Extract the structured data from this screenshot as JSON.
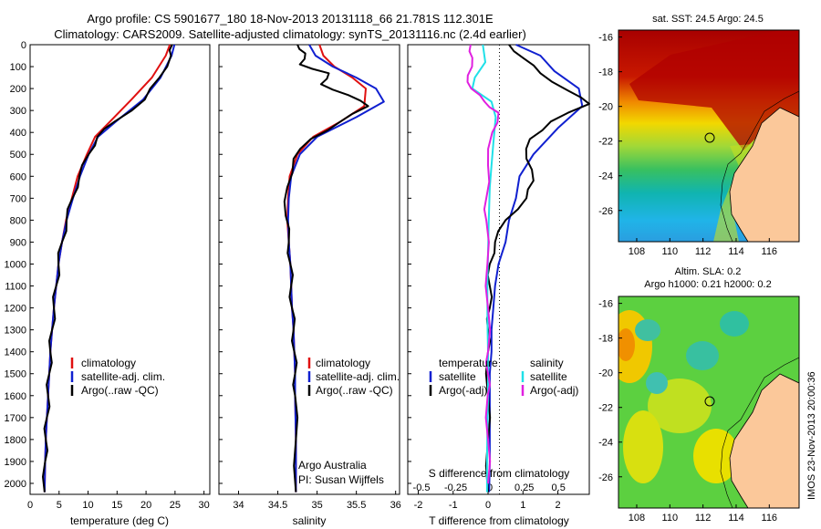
{
  "header": {
    "line1": "Argo profile: CS 5901677_180 18-Nov-2013 20131118_66 21.781S 112.301E",
    "line2": "Climatology: CARS2009. Satellite-adjusted climatology: synTS_20131116.nc (2.4d earlier)"
  },
  "colors": {
    "climatology": "#e01010",
    "satellite": "#1020d0",
    "argo": "#000000",
    "argo_adj_s": "#e020e0",
    "sat_s": "#20e0e8",
    "land": "#fbc89a"
  },
  "depth_axis": {
    "ylim": [
      0,
      2050
    ],
    "ticks": [
      0,
      100,
      200,
      300,
      400,
      500,
      600,
      700,
      800,
      900,
      1000,
      1100,
      1200,
      1300,
      1400,
      1500,
      1600,
      1700,
      1800,
      1900,
      2000
    ]
  },
  "legends": {
    "temperature": [
      "climatology",
      "satellite-adj. clim.",
      "Argo(..raw -QC)"
    ],
    "salinity": [
      "climatology",
      "satellite-adj. clim.",
      "Argo(..raw -QC)"
    ],
    "diff_t_title": "temperature",
    "diff_s_title": "salinity",
    "diff_t": [
      "satellite",
      "Argo(-adj)"
    ],
    "diff_s": [
      "satellite",
      "Argo(-adj)"
    ]
  },
  "credit": {
    "line1": "Argo Australia",
    "line2": "PI: Susan Wijffels"
  },
  "map_sst": {
    "title": "sat. SST: 24.5 Argo: 24.5",
    "lon_ticks": [
      108,
      110,
      112,
      114,
      116
    ],
    "lat_ticks": [
      -16,
      -18,
      -20,
      -22,
      -24,
      -26
    ]
  },
  "map_sla": {
    "title1": "Altim. SLA: 0.2",
    "title2": "Argo h1000: 0.21 h2000: 0.2",
    "lon_ticks": [
      108,
      110,
      112,
      114,
      116
    ],
    "lat_ticks": [
      -16,
      -18,
      -20,
      -22,
      -24,
      -26
    ]
  },
  "side_text": "IMOS 23-Nov-2013 20:00:36",
  "chart_data": [
    {
      "type": "line",
      "xlabel": "temperature (deg C)",
      "xlim": [
        0,
        31
      ],
      "xticks": [
        0,
        5,
        10,
        15,
        20,
        25,
        30
      ],
      "ylim": [
        0,
        2050
      ],
      "series": [
        {
          "name": "climatology",
          "x": [
            24.1,
            23.4,
            21,
            17.5,
            13.8,
            11.2,
            9.8,
            8.2,
            7.2,
            6.2,
            5.5,
            4.9,
            4.5,
            4.1,
            3.8,
            3.5,
            3.3,
            3.1,
            2.9,
            2.7,
            2.6,
            2.5
          ],
          "y": [
            0,
            50,
            150,
            250,
            350,
            420,
            500,
            600,
            700,
            800,
            900,
            1000,
            1100,
            1200,
            1300,
            1400,
            1500,
            1600,
            1700,
            1800,
            1900,
            2040
          ]
        },
        {
          "name": "satellite-adj. clim.",
          "x": [
            24.9,
            24.4,
            22.5,
            19.5,
            14.8,
            11.7,
            10.1,
            8.6,
            7.4,
            6.3,
            5.5,
            4.9,
            4.5,
            4.1,
            3.8,
            3.5,
            3.3,
            3.1,
            2.9,
            2.7,
            2.6,
            2.5
          ],
          "y": [
            0,
            50,
            150,
            250,
            350,
            420,
            500,
            600,
            700,
            800,
            900,
            1000,
            1100,
            1200,
            1300,
            1400,
            1500,
            1600,
            1700,
            1800,
            1900,
            2040
          ]
        },
        {
          "name": "Argo(..raw -QC)",
          "x": [
            24.5,
            24.3,
            22.3,
            19.8,
            14.6,
            11.6,
            10.1,
            8.5,
            7.3,
            6.3,
            5.5,
            4.9,
            4.5,
            4.1,
            3.8,
            3.5,
            3.3,
            3.1,
            2.9,
            2.7,
            2.6,
            2.5
          ],
          "y": [
            0,
            50,
            150,
            250,
            350,
            420,
            500,
            600,
            700,
            800,
            900,
            1000,
            1100,
            1200,
            1300,
            1400,
            1500,
            1600,
            1700,
            1800,
            1900,
            2040
          ]
        }
      ]
    },
    {
      "type": "line",
      "xlabel": "salinity",
      "xlim": [
        33.75,
        36.05
      ],
      "xticks": [
        34,
        34.5,
        35,
        35.5,
        36
      ],
      "ylim": [
        0,
        2050
      ],
      "series": [
        {
          "name": "climatology",
          "x": [
            35.03,
            35.08,
            35.22,
            35.45,
            35.62,
            35.6,
            35.3,
            34.95,
            34.75,
            34.65,
            34.63,
            34.62,
            34.64,
            34.66,
            34.67,
            34.68,
            34.7,
            34.71,
            34.72,
            34.72,
            34.73,
            34.73
          ],
          "y": [
            0,
            50,
            100,
            150,
            200,
            280,
            350,
            420,
            500,
            600,
            700,
            800,
            900,
            1000,
            1100,
            1200,
            1300,
            1400,
            1500,
            1600,
            1800,
            2040
          ]
        },
        {
          "name": "satellite-adj. clim.",
          "x": [
            34.9,
            34.98,
            35.2,
            35.5,
            35.75,
            35.85,
            35.5,
            35.0,
            34.78,
            34.67,
            34.64,
            34.63,
            34.64,
            34.66,
            34.67,
            34.68,
            34.7,
            34.71,
            34.72,
            34.72,
            34.73,
            34.73
          ],
          "y": [
            0,
            50,
            100,
            150,
            200,
            260,
            330,
            420,
            500,
            600,
            700,
            800,
            900,
            1000,
            1100,
            1200,
            1300,
            1400,
            1500,
            1600,
            1800,
            2040
          ]
        },
        {
          "name": "Argo(..raw -QC)",
          "x": [
            34.75,
            34.85,
            34.78,
            35.15,
            35.05,
            35.4,
            35.65,
            35.3,
            34.92,
            34.7,
            34.62,
            34.6,
            34.64,
            34.66,
            34.67,
            34.68,
            34.7,
            34.71,
            34.72,
            34.72,
            34.73,
            34.73
          ],
          "y": [
            0,
            40,
            90,
            130,
            180,
            230,
            280,
            350,
            430,
            520,
            650,
            780,
            900,
            1000,
            1100,
            1200,
            1300,
            1400,
            1500,
            1600,
            1800,
            2040
          ]
        }
      ]
    },
    {
      "type": "line",
      "xlabel": "T difference from climatology",
      "xlabel_top": "S difference from climatology",
      "xlim": [
        -2.3,
        2.9
      ],
      "xticks": [
        -2,
        -1,
        0,
        1,
        2
      ],
      "xlim_top": [
        -0.6,
        0.725
      ],
      "xticks_top": [
        -0.5,
        -0.25,
        0,
        0.25,
        0.5
      ],
      "ylim": [
        0,
        2050
      ],
      "series": [
        {
          "name": "temperature satellite",
          "x": [
            0.8,
            1.5,
            1.9,
            2.6,
            2.7,
            2.0,
            1.3,
            0.9,
            0.8,
            0.6,
            0.5,
            0.3,
            0.2,
            0.15,
            0.1,
            0.1,
            0.05,
            0.05,
            0.05,
            0.03
          ],
          "y": [
            0,
            50,
            120,
            200,
            280,
            380,
            500,
            600,
            700,
            800,
            900,
            1000,
            1100,
            1200,
            1300,
            1400,
            1500,
            1700,
            1900,
            2040
          ]
        },
        {
          "name": "temperature Argo(-adj)",
          "x": [
            0.6,
            1.0,
            1.5,
            2.3,
            2.9,
            1.8,
            1.2,
            1.1,
            1.3,
            1.1,
            0.5,
            0.2,
            0.05,
            0.05,
            0.05,
            0.0,
            0.0,
            0.0,
            0.0,
            0.0
          ],
          "y": [
            0,
            60,
            130,
            210,
            270,
            350,
            430,
            520,
            620,
            700,
            800,
            900,
            1000,
            1100,
            1200,
            1300,
            1400,
            1600,
            1800,
            2040
          ]
        },
        {
          "name": "salinity satellite",
          "x": [
            -0.15,
            -0.08,
            -0.38,
            -0.45,
            0.1,
            0.22,
            0.15,
            0.1,
            0.05,
            0.02,
            0.0,
            -0.02,
            -0.02,
            0.0,
            0.0,
            0.0,
            -0.02,
            -0.03,
            -0.03
          ],
          "y": [
            0,
            80,
            150,
            200,
            260,
            330,
            450,
            550,
            650,
            800,
            950,
            1100,
            1250,
            1400,
            1500,
            1600,
            1750,
            1900,
            2040
          ]
        },
        {
          "name": "salinity Argo(-adj)",
          "x": [
            -0.5,
            -0.45,
            -0.58,
            -0.48,
            -0.1,
            0.3,
            0.12,
            0.0,
            -0.05,
            -0.05,
            -0.02,
            0.0,
            0.0,
            0.0,
            -0.01,
            0.0,
            0.0
          ],
          "y": [
            0,
            60,
            140,
            200,
            260,
            310,
            400,
            550,
            700,
            800,
            1000,
            1200,
            1400,
            1500,
            1600,
            1800,
            2000
          ]
        }
      ]
    }
  ]
}
